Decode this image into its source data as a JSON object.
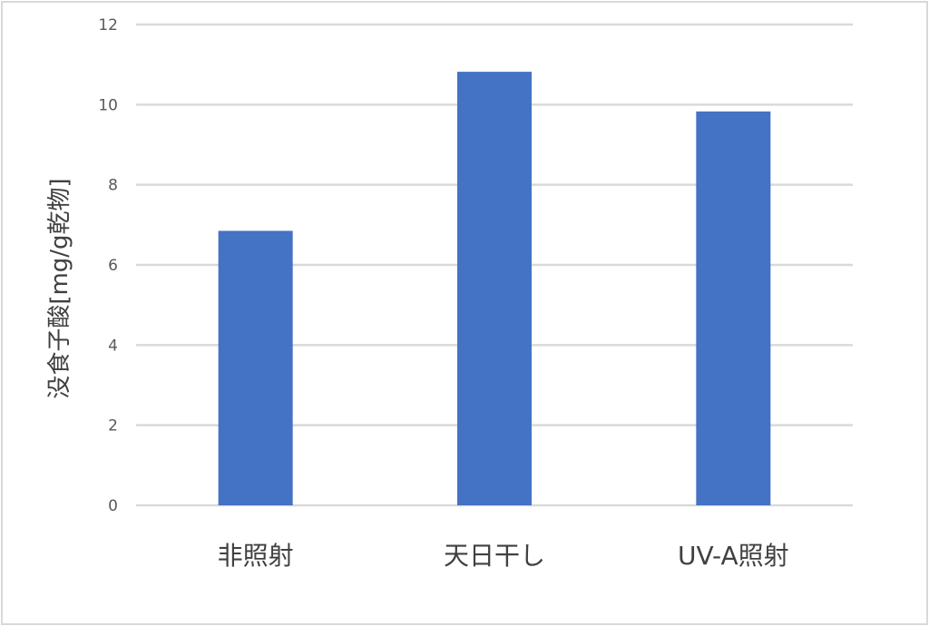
{
  "chart_data": {
    "type": "bar",
    "title": "",
    "xlabel": "",
    "ylabel": "没食子酸[mg/g乾物]",
    "categories": [
      "非照射",
      "天日干し",
      "UV-A照射"
    ],
    "values": [
      6.85,
      10.82,
      9.83
    ],
    "ylim": [
      0,
      12
    ],
    "yticks": [
      "0",
      "2",
      "4",
      "6",
      "8",
      "10",
      "12"
    ],
    "grid": true,
    "legend": "none",
    "colors": {
      "bar": "#4472C4",
      "grid": "#d9d9d9"
    }
  }
}
